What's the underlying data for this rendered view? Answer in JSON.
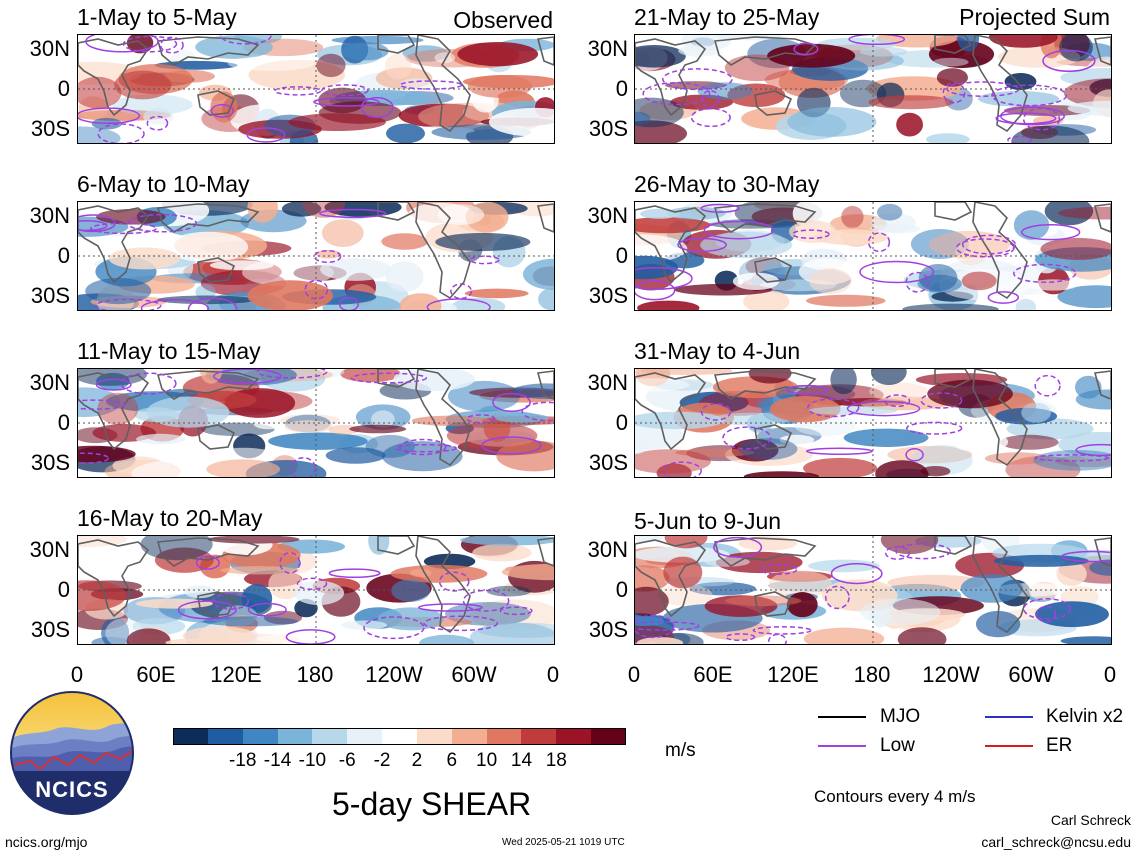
{
  "panels_left": [
    {
      "title": "1-May to 5-May",
      "tag": "Observed"
    },
    {
      "title": "6-May to 10-May",
      "tag": ""
    },
    {
      "title": "11-May to 15-May",
      "tag": ""
    },
    {
      "title": "16-May to 20-May",
      "tag": ""
    }
  ],
  "panels_right": [
    {
      "title": "21-May to 25-May",
      "tag": "Projected Sum"
    },
    {
      "title": "26-May to 30-May",
      "tag": ""
    },
    {
      "title": "31-May to 4-Jun",
      "tag": ""
    },
    {
      "title": "5-Jun to 9-Jun",
      "tag": ""
    }
  ],
  "lat_labels": [
    "30N",
    "0",
    "30S"
  ],
  "lon_labels": [
    "0",
    "60E",
    "120E",
    "180",
    "120W",
    "60W",
    "0"
  ],
  "colorbar": {
    "colors": [
      "#0d2c5a",
      "#1f5ca1",
      "#3f86c2",
      "#7bb4d9",
      "#b7d8eb",
      "#e6f1f8",
      "#ffffff",
      "#fbdcca",
      "#f3ae91",
      "#e07760",
      "#c03c3c",
      "#9a1327",
      "#650019"
    ],
    "ticks": [
      "-18",
      "-14",
      "-10",
      "-6",
      "-2",
      "2",
      "6",
      "10",
      "14",
      "18"
    ],
    "units": "m/s"
  },
  "legend": {
    "mjo": {
      "label": "MJO",
      "color": "#000000"
    },
    "kelvin": {
      "label": "Kelvin x2",
      "color": "#3030c0"
    },
    "low": {
      "label": "Low",
      "color": "#a040e0"
    },
    "er": {
      "label": "ER",
      "color": "#d02020"
    }
  },
  "main_title": "5-day SHEAR",
  "contours_note": "Contours every 4 m/s",
  "logo_text": "NCICS",
  "footer": {
    "site": "ncics.org/mjo",
    "timestamp": "Wed 2025-05-21 1019 UTC",
    "author": "Carl Schreck",
    "email": "carl_schreck@ncsu.edu"
  }
}
